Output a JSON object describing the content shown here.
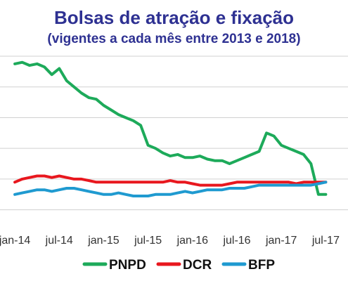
{
  "chart_data": {
    "type": "line",
    "title": "Bolsas de atração e fixação",
    "subtitle": "(vigentes a cada mês entre 2013 e 2018)",
    "x_tick_labels": [
      "jan-14",
      "jul-14",
      "jan-15",
      "jul-15",
      "jan-16",
      "jul-16",
      "jan-17",
      "jul-17"
    ],
    "grid": "horizontal",
    "legend_position": "bottom",
    "series": [
      {
        "name": "PNPD",
        "color": "#1daa5a",
        "points": [
          [
            "2014-01",
            115
          ],
          [
            "2014-02",
            116
          ],
          [
            "2014-03",
            114
          ],
          [
            "2014-04",
            115
          ],
          [
            "2014-05",
            113
          ],
          [
            "2014-06",
            108
          ],
          [
            "2014-07",
            112
          ],
          [
            "2014-08",
            104
          ],
          [
            "2014-09",
            100
          ],
          [
            "2014-10",
            96
          ],
          [
            "2014-11",
            93
          ],
          [
            "2014-12",
            92
          ],
          [
            "2015-01",
            88
          ],
          [
            "2015-02",
            85
          ],
          [
            "2015-03",
            82
          ],
          [
            "2015-04",
            80
          ],
          [
            "2015-05",
            78
          ],
          [
            "2015-06",
            75
          ],
          [
            "2015-07",
            62
          ],
          [
            "2015-08",
            60
          ],
          [
            "2015-09",
            57
          ],
          [
            "2015-10",
            55
          ],
          [
            "2015-11",
            56
          ],
          [
            "2015-12",
            54
          ],
          [
            "2016-01",
            54
          ],
          [
            "2016-02",
            55
          ],
          [
            "2016-03",
            53
          ],
          [
            "2016-04",
            52
          ],
          [
            "2016-05",
            52
          ],
          [
            "2016-06",
            50
          ],
          [
            "2016-07",
            52
          ],
          [
            "2016-08",
            54
          ],
          [
            "2016-09",
            56
          ],
          [
            "2016-10",
            58
          ],
          [
            "2016-11",
            70
          ],
          [
            "2016-12",
            68
          ],
          [
            "2017-01",
            62
          ],
          [
            "2017-02",
            60
          ],
          [
            "2017-03",
            58
          ],
          [
            "2017-04",
            56
          ],
          [
            "2017-05",
            50
          ],
          [
            "2017-06",
            30
          ],
          [
            "2017-07",
            30
          ]
        ]
      },
      {
        "name": "DCR",
        "color": "#e8171e",
        "points": [
          [
            "2014-01",
            38
          ],
          [
            "2014-02",
            40
          ],
          [
            "2014-03",
            41
          ],
          [
            "2014-04",
            42
          ],
          [
            "2014-05",
            42
          ],
          [
            "2014-06",
            41
          ],
          [
            "2014-07",
            42
          ],
          [
            "2014-08",
            41
          ],
          [
            "2014-09",
            40
          ],
          [
            "2014-10",
            40
          ],
          [
            "2014-11",
            39
          ],
          [
            "2014-12",
            38
          ],
          [
            "2015-01",
            38
          ],
          [
            "2015-02",
            38
          ],
          [
            "2015-03",
            38
          ],
          [
            "2015-04",
            38
          ],
          [
            "2015-05",
            38
          ],
          [
            "2015-06",
            38
          ],
          [
            "2015-07",
            38
          ],
          [
            "2015-08",
            38
          ],
          [
            "2015-09",
            38
          ],
          [
            "2015-10",
            39
          ],
          [
            "2015-11",
            38
          ],
          [
            "2015-12",
            38
          ],
          [
            "2016-01",
            37
          ],
          [
            "2016-02",
            36
          ],
          [
            "2016-03",
            36
          ],
          [
            "2016-04",
            36
          ],
          [
            "2016-05",
            36
          ],
          [
            "2016-06",
            37
          ],
          [
            "2016-07",
            38
          ],
          [
            "2016-08",
            38
          ],
          [
            "2016-09",
            38
          ],
          [
            "2016-10",
            38
          ],
          [
            "2016-11",
            38
          ],
          [
            "2016-12",
            38
          ],
          [
            "2017-01",
            38
          ],
          [
            "2017-02",
            38
          ],
          [
            "2017-03",
            37
          ],
          [
            "2017-04",
            38
          ],
          [
            "2017-05",
            38
          ],
          [
            "2017-06",
            38
          ],
          [
            "2017-07",
            38
          ]
        ]
      },
      {
        "name": "BFP",
        "color": "#1f9ad0",
        "points": [
          [
            "2014-01",
            30
          ],
          [
            "2014-02",
            31
          ],
          [
            "2014-03",
            32
          ],
          [
            "2014-04",
            33
          ],
          [
            "2014-05",
            33
          ],
          [
            "2014-06",
            32
          ],
          [
            "2014-07",
            33
          ],
          [
            "2014-08",
            34
          ],
          [
            "2014-09",
            34
          ],
          [
            "2014-10",
            33
          ],
          [
            "2014-11",
            32
          ],
          [
            "2014-12",
            31
          ],
          [
            "2015-01",
            30
          ],
          [
            "2015-02",
            30
          ],
          [
            "2015-03",
            31
          ],
          [
            "2015-04",
            30
          ],
          [
            "2015-05",
            29
          ],
          [
            "2015-06",
            29
          ],
          [
            "2015-07",
            29
          ],
          [
            "2015-08",
            30
          ],
          [
            "2015-09",
            30
          ],
          [
            "2015-10",
            30
          ],
          [
            "2015-11",
            31
          ],
          [
            "2015-12",
            32
          ],
          [
            "2016-01",
            31
          ],
          [
            "2016-02",
            32
          ],
          [
            "2016-03",
            33
          ],
          [
            "2016-04",
            33
          ],
          [
            "2016-05",
            33
          ],
          [
            "2016-06",
            34
          ],
          [
            "2016-07",
            34
          ],
          [
            "2016-08",
            34
          ],
          [
            "2016-09",
            35
          ],
          [
            "2016-10",
            36
          ],
          [
            "2016-11",
            36
          ],
          [
            "2016-12",
            36
          ],
          [
            "2017-01",
            36
          ],
          [
            "2017-02",
            36
          ],
          [
            "2017-03",
            36
          ],
          [
            "2017-04",
            36
          ],
          [
            "2017-05",
            36
          ],
          [
            "2017-06",
            37
          ],
          [
            "2017-07",
            38
          ]
        ]
      }
    ]
  }
}
